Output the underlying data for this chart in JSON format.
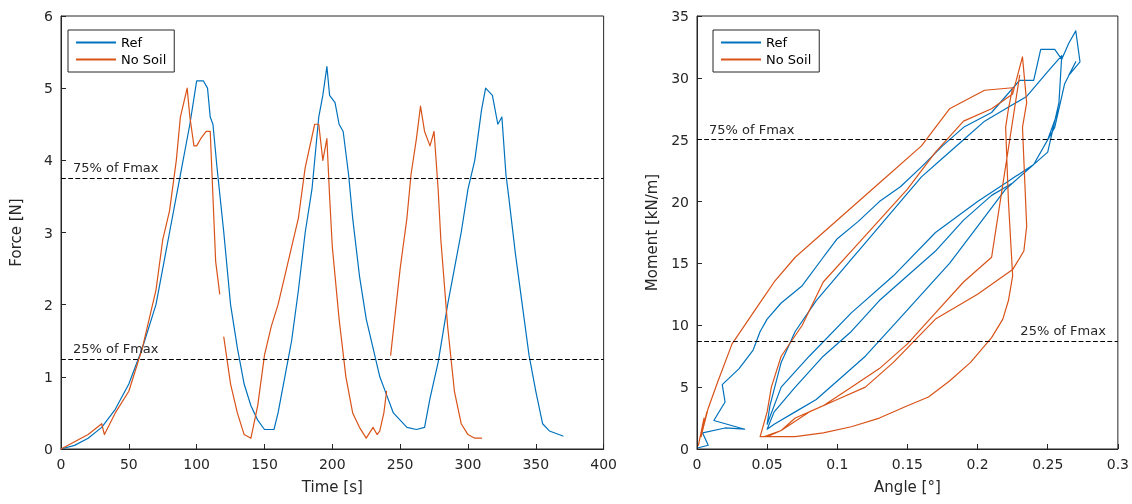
{
  "chart_data": [
    {
      "type": "line",
      "xlabel": "Time [s]",
      "ylabel": "Force [N]",
      "xlim": [
        0,
        400
      ],
      "xticks": [
        0,
        50,
        100,
        150,
        200,
        250,
        300,
        350,
        400
      ],
      "ylim": [
        0,
        6
      ],
      "yticks": [
        0,
        1,
        2,
        3,
        4,
        5,
        6
      ],
      "grid": false,
      "legend": "top left",
      "marker": "none",
      "line_style": "solid",
      "ref_lines": [
        {
          "axis": "y",
          "value": 3.75,
          "label": "75% of Fmax",
          "color": "#000000",
          "line_style": "dashed"
        },
        {
          "axis": "y",
          "value": 1.25,
          "label": "25% of Fmax",
          "color": "#000000",
          "line_style": "dashed"
        }
      ],
      "series": [
        {
          "name": "Ref",
          "color": "#0072bd",
          "x": [
            0,
            10,
            20,
            30,
            40,
            50,
            60,
            70,
            75,
            80,
            85,
            90,
            95,
            100,
            105,
            108,
            110,
            112,
            115,
            120,
            125,
            130,
            135,
            140,
            145,
            150,
            157,
            160,
            165,
            170,
            175,
            180,
            185,
            190,
            193,
            196,
            198,
            202,
            205,
            208,
            212,
            215,
            220,
            225,
            230,
            235,
            240,
            245,
            250,
            255,
            262,
            268,
            272,
            278,
            285,
            290,
            295,
            300,
            305,
            310,
            313,
            318,
            322,
            325,
            328,
            330,
            335,
            340,
            345,
            350,
            355,
            360,
            370
          ],
          "values": [
            0,
            0.05,
            0.15,
            0.3,
            0.55,
            0.9,
            1.4,
            2.0,
            2.5,
            3.0,
            3.5,
            4.0,
            4.5,
            5.1,
            5.1,
            5.0,
            4.6,
            4.5,
            3.9,
            3.0,
            2.0,
            1.4,
            0.9,
            0.6,
            0.4,
            0.27,
            0.27,
            0.5,
            1.0,
            1.5,
            2.2,
            3.0,
            3.6,
            4.6,
            4.9,
            5.3,
            4.9,
            4.8,
            4.5,
            4.4,
            3.8,
            3.2,
            2.4,
            1.8,
            1.4,
            1.0,
            0.75,
            0.5,
            0.4,
            0.3,
            0.27,
            0.3,
            0.7,
            1.2,
            2.0,
            2.5,
            3.0,
            3.6,
            4.0,
            4.7,
            5.0,
            4.9,
            4.5,
            4.6,
            3.8,
            3.5,
            2.7,
            2.0,
            1.3,
            0.8,
            0.35,
            0.25,
            0.18
          ]
        },
        {
          "name": "No Soil",
          "color": "#d95319",
          "x": [
            0,
            10,
            20,
            30,
            32,
            40,
            50,
            60,
            70,
            75,
            80,
            85,
            88,
            93,
            95,
            98,
            100,
            103,
            107,
            110,
            112,
            114,
            117,
            118.5,
            120,
            125,
            130,
            135,
            140,
            145,
            150,
            155,
            160,
            165,
            170,
            175,
            180,
            187,
            190,
            193,
            196,
            198,
            200,
            205,
            210,
            215,
            220,
            225,
            230,
            233,
            235,
            238,
            240,
            241.5,
            243,
            250,
            255,
            258,
            262,
            265,
            268,
            272,
            275,
            278,
            280,
            285,
            290,
            295,
            300,
            305,
            310
          ],
          "values": [
            0,
            0.1,
            0.2,
            0.35,
            0.2,
            0.5,
            0.8,
            1.4,
            2.2,
            2.9,
            3.3,
            4.0,
            4.6,
            5.0,
            4.6,
            4.2,
            4.2,
            4.3,
            4.4,
            4.4,
            3.5,
            2.6,
            2.15,
            null,
            1.55,
            0.9,
            0.5,
            0.2,
            0.15,
            0.6,
            1.3,
            1.7,
            2.0,
            2.4,
            2.8,
            3.2,
            3.9,
            4.5,
            4.5,
            4.0,
            4.3,
            3.5,
            2.8,
            1.8,
            1.0,
            0.5,
            0.3,
            0.15,
            0.3,
            0.2,
            0.25,
            0.5,
            0.8,
            null,
            1.3,
            2.5,
            3.2,
            3.8,
            4.3,
            4.75,
            4.4,
            4.2,
            4.4,
            3.6,
            2.9,
            1.7,
            0.8,
            0.35,
            0.2,
            0.15,
            0.15
          ]
        }
      ]
    },
    {
      "type": "line",
      "xlabel": "Angle [°]",
      "ylabel": "Moment [kN/m]",
      "xlim": [
        0,
        0.3
      ],
      "xticks": [
        0,
        0.05,
        0.1,
        0.15,
        0.2,
        0.25,
        0.3
      ],
      "ylim": [
        0,
        35
      ],
      "yticks": [
        0,
        5,
        10,
        15,
        20,
        25,
        30,
        35
      ],
      "grid": false,
      "legend": "top left",
      "marker": "none",
      "line_style": "solid",
      "ref_lines": [
        {
          "axis": "y",
          "value": 25,
          "label": "75% of Fmax",
          "color": "#000000",
          "line_style": "dashed"
        },
        {
          "axis": "y",
          "value": 8.75,
          "label": "25% of Fmax",
          "color": "#000000",
          "line_style": "dashed"
        }
      ],
      "series": [
        {
          "name": "Ref",
          "color": "#0072bd",
          "x": [
            0.001,
            0.008,
            0.004,
            0.02,
            0.034,
            0.012,
            0.02,
            0.018,
            0.03,
            0.04,
            0.045,
            0.05,
            0.06,
            0.075,
            0.09,
            0.1,
            0.115,
            0.13,
            0.145,
            0.16,
            0.175,
            0.19,
            0.21,
            0.23,
            0.24,
            0.245,
            0.255,
            0.26,
            0.265,
            0.27,
            0.273,
            0.265,
            0.27,
            0.262,
            0.258,
            0.25,
            0.24,
            0.22,
            0.2,
            0.17,
            0.14,
            0.11,
            0.08,
            0.06,
            0.05,
            0.052,
            0.06,
            0.07,
            0.085,
            0.1,
            0.115,
            0.13,
            0.145,
            0.16,
            0.175,
            0.19,
            0.205,
            0.22,
            0.235,
            0.25,
            0.26,
            0.258,
            0.25,
            0.235,
            0.22,
            0.2,
            0.18,
            0.16,
            0.14,
            0.12,
            0.1,
            0.085,
            0.07,
            0.055,
            0.05,
            0.055,
            0.07,
            0.09,
            0.11,
            0.13,
            0.15,
            0.17,
            0.19,
            0.21,
            0.225,
            0.24,
            0.255,
            0.262
          ],
          "values": [
            0.1,
            0.3,
            1.3,
            1.7,
            1.6,
            2.3,
            3.8,
            5.2,
            6.5,
            8.0,
            9.5,
            10.5,
            11.8,
            13.2,
            15.5,
            17.0,
            18.4,
            20.0,
            21.2,
            22.8,
            24.5,
            26.0,
            27.2,
            29.8,
            29.8,
            32.3,
            32.3,
            31.5,
            32.8,
            33.8,
            31.3,
            30.2,
            31.3,
            29.5,
            27.5,
            25.0,
            23.0,
            21.5,
            20.0,
            17.5,
            14.0,
            11.0,
            7.5,
            5.0,
            2.0,
            3.5,
            7.0,
            9.5,
            12.0,
            14.0,
            16.0,
            18.0,
            20.0,
            22.0,
            23.5,
            25.0,
            26.5,
            27.5,
            28.5,
            30.5,
            31.8,
            28.0,
            24.0,
            22.5,
            21.0,
            18.0,
            15.0,
            12.5,
            10.0,
            7.5,
            5.5,
            4.0,
            3.0,
            2.0,
            1.6,
            3.0,
            5.0,
            7.5,
            9.5,
            12.0,
            14.0,
            16.0,
            18.5,
            20.5,
            21.5,
            23.0,
            26.0,
            29.5
          ]
        },
        {
          "name": "No Soil",
          "color": "#d95319",
          "x": [
            0.001,
            0.005,
            0.003,
            0.007,
            0.004,
            0.008,
            0.015,
            0.025,
            0.04,
            0.055,
            0.07,
            0.09,
            0.11,
            0.13,
            0.16,
            0.18,
            0.205,
            0.225,
            0.222,
            0.22,
            0.222,
            0.225,
            0.222,
            0.218,
            0.21,
            0.195,
            0.18,
            0.165,
            0.15,
            0.13,
            0.11,
            0.09,
            0.07,
            0.055,
            0.045,
            0.05,
            0.053,
            0.06,
            0.075,
            0.09,
            0.11,
            0.13,
            0.15,
            0.17,
            0.19,
            0.21,
            0.225,
            0.232,
            0.235,
            0.232,
            0.235,
            0.233,
            0.225,
            0.2,
            0.17,
            0.14,
            0.12,
            0.1,
            0.08,
            0.06,
            0.048,
            0.05,
            0.06,
            0.07,
            0.09,
            0.11,
            0.13,
            0.15,
            0.17,
            0.19,
            0.21,
            0.23
          ],
          "values": [
            0.3,
            2.5,
            1.0,
            3.0,
            1.5,
            3.3,
            5.5,
            8.5,
            11.0,
            13.5,
            15.5,
            17.5,
            19.5,
            21.5,
            24.5,
            27.5,
            29.0,
            29.2,
            27.5,
            26.0,
            20.0,
            14.0,
            12.0,
            10.5,
            9.0,
            7.0,
            5.5,
            4.2,
            3.5,
            2.5,
            1.8,
            1.3,
            1.0,
            1.0,
            1.0,
            3.0,
            5.0,
            7.5,
            10.0,
            13.5,
            16.0,
            18.5,
            21.0,
            24.0,
            26.5,
            27.5,
            28.7,
            31.7,
            28.0,
            26.0,
            18.0,
            16.0,
            14.5,
            12.5,
            10.5,
            7.0,
            5.0,
            4.0,
            3.0,
            1.5,
            1.0,
            1.0,
            1.5,
            2.5,
            3.5,
            5.0,
            6.5,
            8.5,
            11.0,
            13.5,
            15.5,
            30.2
          ]
        }
      ]
    }
  ]
}
